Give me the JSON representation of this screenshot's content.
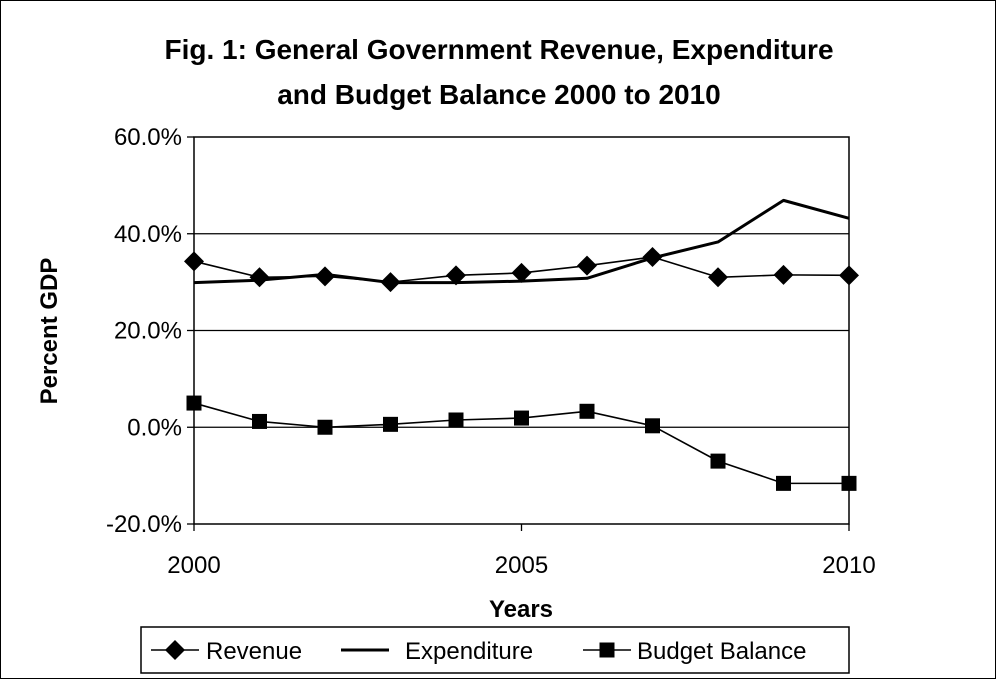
{
  "chart_data": {
    "type": "line",
    "title_lines": [
      "Fig. 1: General Government Revenue, Expenditure",
      "and Budget Balance 2000 to 2010"
    ],
    "xlabel": "Years",
    "ylabel": "Percent GDP",
    "x": [
      2000,
      2001,
      2002,
      2003,
      2004,
      2005,
      2006,
      2007,
      2008,
      2009,
      2010
    ],
    "xlim": [
      2000,
      2010
    ],
    "x_ticks": [
      2000,
      2005,
      2010
    ],
    "x_tick_labels": [
      "2000",
      "2005",
      "2010"
    ],
    "ylim": [
      -20,
      60
    ],
    "y_ticks": [
      -20,
      0,
      20,
      40,
      60
    ],
    "y_tick_labels": [
      "-20.0%",
      "0.0%",
      "20.0%",
      "40.0%",
      "60.0%"
    ],
    "grid": "horizontal",
    "legend_position": "bottom",
    "series": [
      {
        "name": "Revenue",
        "marker": "diamond",
        "values": [
          34.3,
          31.0,
          31.2,
          30.0,
          31.4,
          31.9,
          33.4,
          35.2,
          31.0,
          31.5,
          31.4
        ]
      },
      {
        "name": "Expenditure",
        "marker": "none",
        "values": [
          29.9,
          30.4,
          31.6,
          29.9,
          29.9,
          30.2,
          30.8,
          35.0,
          38.3,
          46.9,
          43.2
        ]
      },
      {
        "name": "Budget Balance",
        "marker": "square",
        "values": [
          5.0,
          1.2,
          0.0,
          0.6,
          1.5,
          1.9,
          3.3,
          0.3,
          -7.0,
          -11.6,
          -11.6
        ]
      }
    ]
  }
}
